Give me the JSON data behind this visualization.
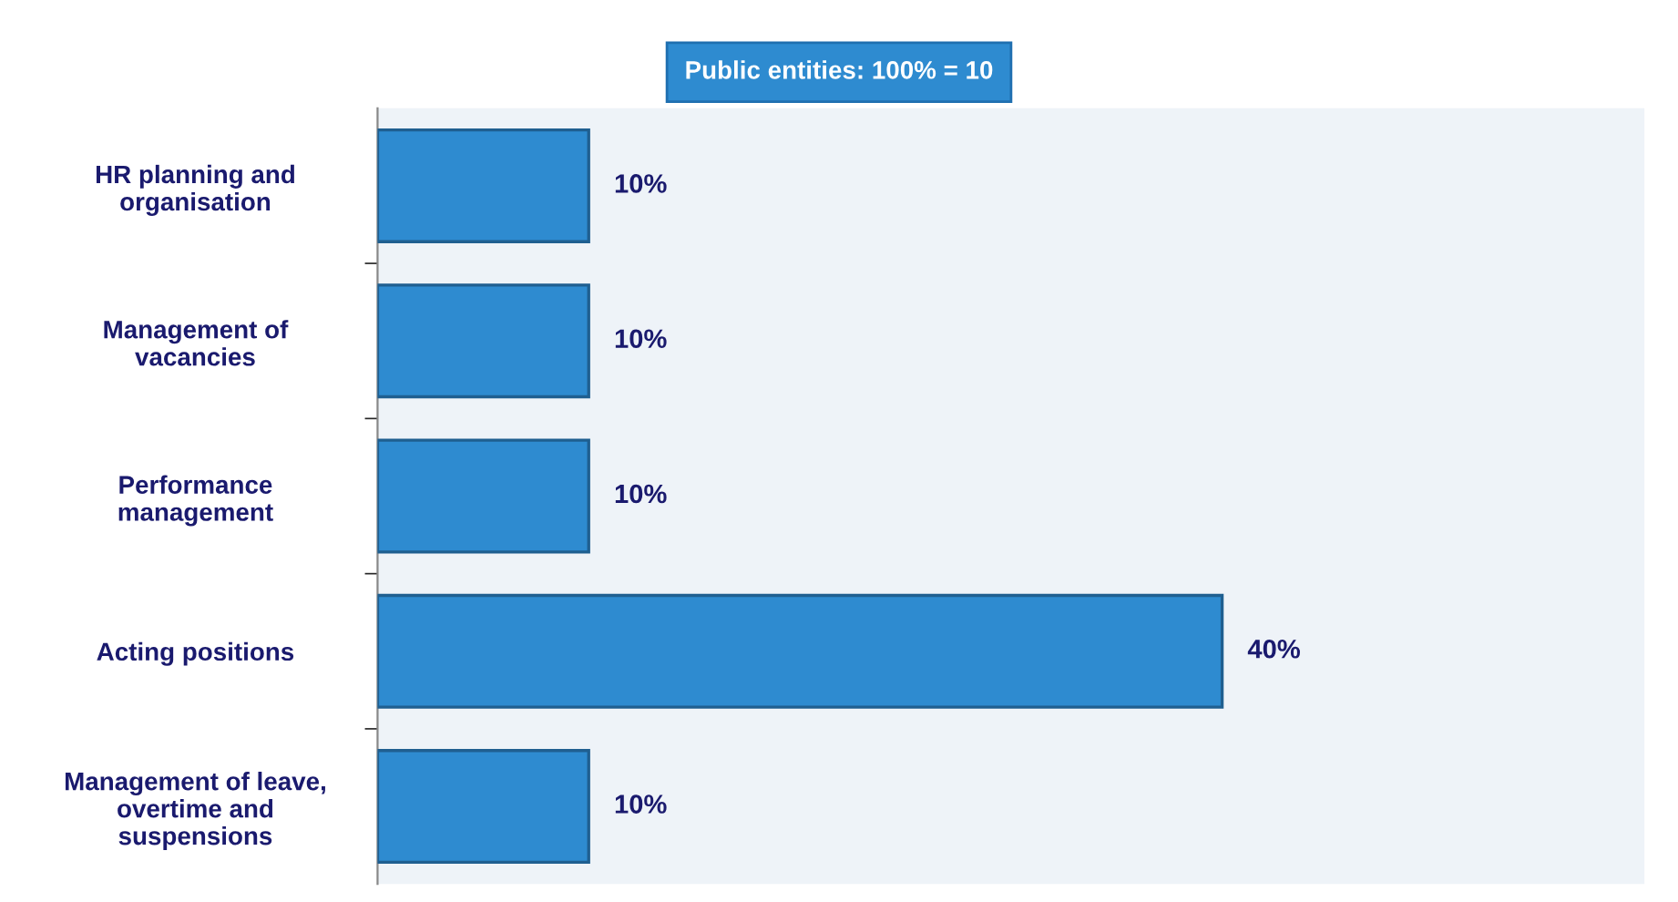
{
  "chart_data": {
    "type": "bar",
    "orientation": "horizontal",
    "title": "Public entities: 100% = 10",
    "categories": [
      "HR planning and\norganisation",
      "Management of\nvacancies",
      "Performance\nmanagement",
      "Acting positions",
      "Management of leave,\novertime and\nsuspensions"
    ],
    "values": [
      10,
      10,
      10,
      40,
      10
    ],
    "value_labels": [
      "10%",
      "10%",
      "10%",
      "40%",
      "10%"
    ],
    "color": "#2e8bd0",
    "grid": false,
    "legend": false,
    "tick_labels": "y"
  }
}
